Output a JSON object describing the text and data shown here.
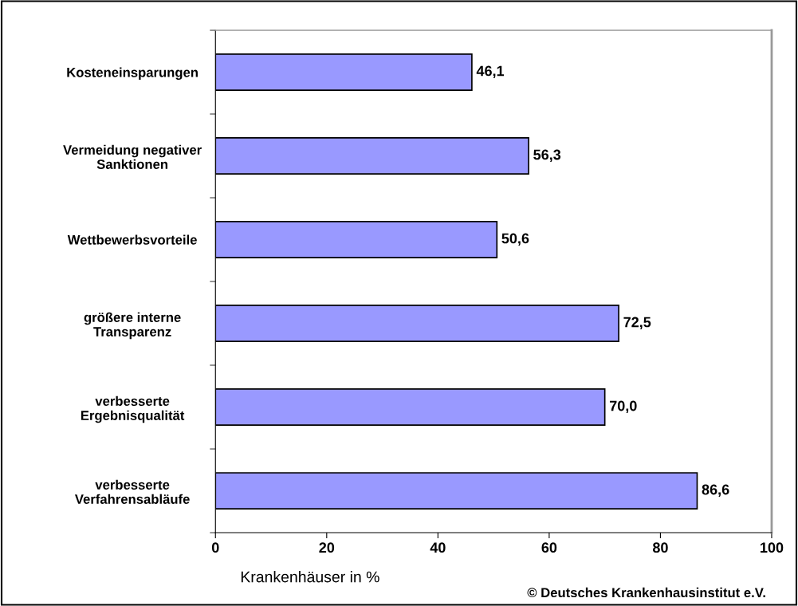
{
  "chart_data": {
    "type": "bar",
    "orientation": "horizontal",
    "categories": [
      "Kosteneinsparungen",
      "Vermeidung negativer\nSanktionen",
      "Wettbewerbsvorteile",
      "größere interne\nTransparenz",
      "verbesserte\nErgebnisqualität",
      "verbesserte\nVerfahrensabläufe"
    ],
    "values": [
      46.1,
      56.3,
      50.6,
      72.5,
      70.0,
      86.6
    ],
    "value_labels": [
      "46,1",
      "56,3",
      "50,6",
      "72,5",
      "70,0",
      "86,6"
    ],
    "color": "#9999ff",
    "xlabel": "Krankenhäuser in %",
    "xlim": [
      0,
      100
    ],
    "xticks": [
      0,
      20,
      40,
      60,
      80,
      100
    ],
    "grid": false,
    "legend": false,
    "annotations": [
      "© Deutsches Krankenhausinstitut e.V."
    ]
  }
}
